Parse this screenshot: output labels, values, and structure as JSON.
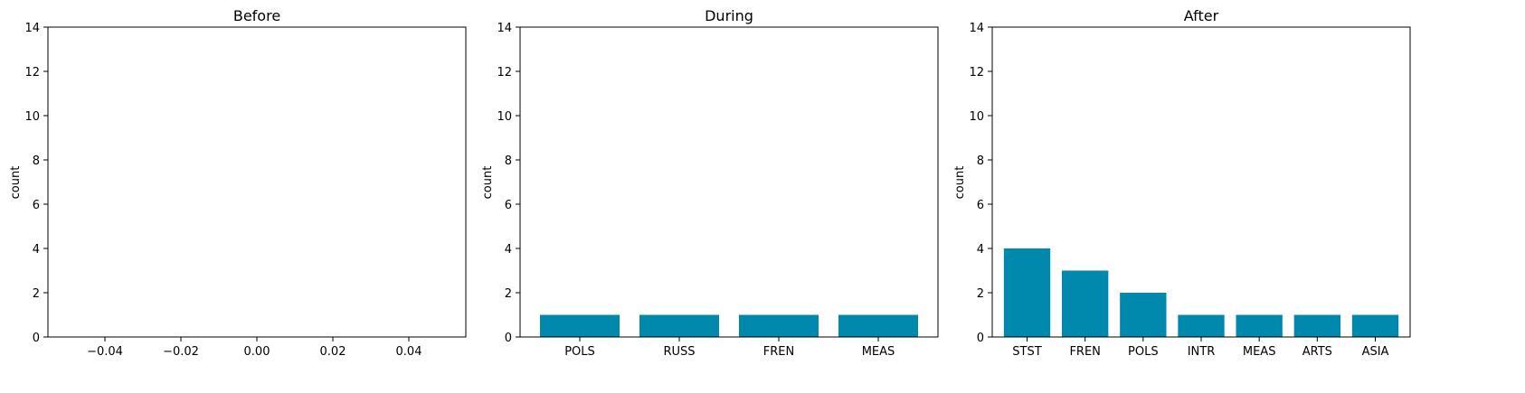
{
  "colors": {
    "bar": "#0088AD",
    "axis": "#000000"
  },
  "chart_data": [
    {
      "type": "bar",
      "title": "Before",
      "xlabel": "",
      "ylabel": "count",
      "categories": [],
      "values": [],
      "xlim": [
        -0.055,
        0.055
      ],
      "x_ticks": [
        "−0.04",
        "−0.02",
        "0.00",
        "0.02",
        "0.04"
      ],
      "x_tick_values": [
        -0.04,
        -0.02,
        0.0,
        0.02,
        0.04
      ],
      "ylim": [
        0,
        14
      ],
      "y_ticks": [
        0,
        2,
        4,
        6,
        8,
        10,
        12,
        14
      ],
      "grid": false
    },
    {
      "type": "bar",
      "title": "During",
      "xlabel": "",
      "ylabel": "count",
      "categories": [
        "POLS",
        "RUSS",
        "FREN",
        "MEAS"
      ],
      "values": [
        1,
        1,
        1,
        1
      ],
      "ylim": [
        0,
        14
      ],
      "y_ticks": [
        0,
        2,
        4,
        6,
        8,
        10,
        12,
        14
      ],
      "grid": false
    },
    {
      "type": "bar",
      "title": "After",
      "xlabel": "",
      "ylabel": "count",
      "categories": [
        "STST",
        "FREN",
        "POLS",
        "INTR",
        "MEAS",
        "ARTS",
        "ASIA"
      ],
      "values": [
        4,
        3,
        2,
        1,
        1,
        1,
        1
      ],
      "ylim": [
        0,
        14
      ],
      "y_ticks": [
        0,
        2,
        4,
        6,
        8,
        10,
        12,
        14
      ],
      "grid": false
    }
  ]
}
